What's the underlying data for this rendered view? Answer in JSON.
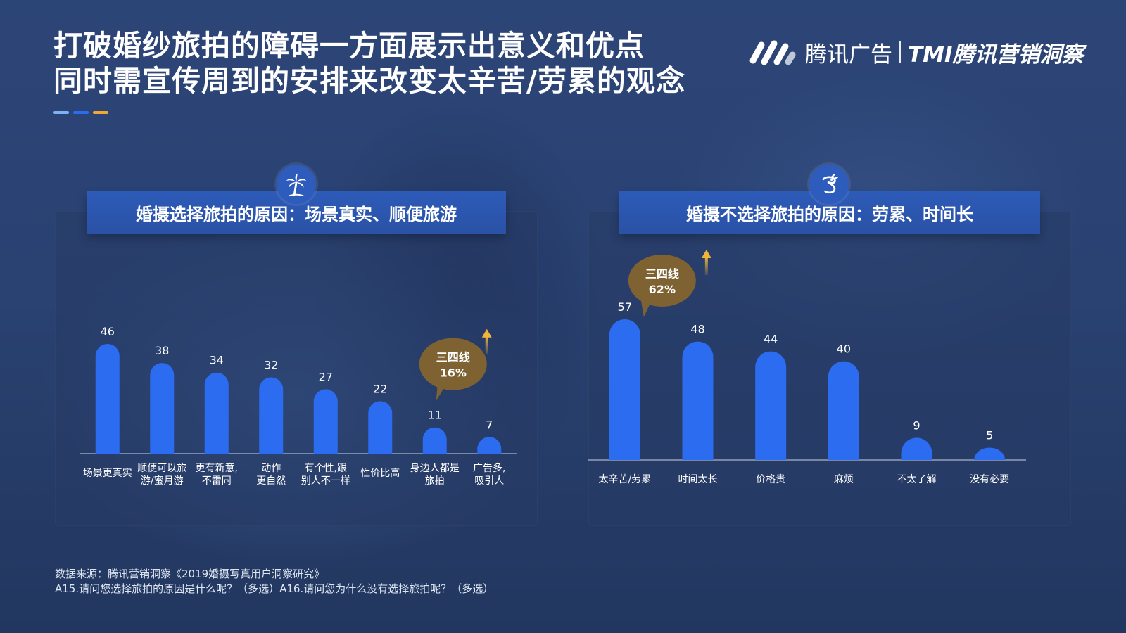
{
  "title": {
    "line1": "打破婚纱旅拍的障碍一方面展示出意义和优点",
    "line2": "同时需宣传周到的安排来改变太辛苦/劳累的观念"
  },
  "logo": {
    "brand": "腾讯广告",
    "sub": "TMI腾讯营销洞察"
  },
  "colors": {
    "bar": "#2b6cf0",
    "bubble": "#7f6232",
    "arrow": "#f0b43a",
    "accent1": "#7bb2f0",
    "accent2": "#2b6cf0",
    "accent3": "#f0a830"
  },
  "panels": {
    "left": {
      "title": "婚摄选择旅拍的原因：场景真实、顺便旅游",
      "icon": "palm-tree-icon"
    },
    "right": {
      "title": "婚摄不选择旅拍的原因：劳累、时间长",
      "icon": "dragon-icon"
    }
  },
  "chart_data": [
    {
      "type": "bar",
      "title": "婚摄选择旅拍的原因：场景真实、顺便旅游",
      "categories": [
        "场景更真实",
        "顺便可以旅\n游/蜜月游",
        "更有新意,\n不雷同",
        "动作\n更自然",
        "有个性,跟\n别人不一样",
        "性价比高",
        "身边人都是\n旅拍",
        "广告多,\n吸引人"
      ],
      "values": [
        46,
        38,
        34,
        32,
        27,
        22,
        11,
        7
      ],
      "ylim": [
        0,
        46
      ],
      "annotation": {
        "category_index": 6,
        "text_line1": "三四线",
        "text_line2": "16%"
      }
    },
    {
      "type": "bar",
      "title": "婚摄不选择旅拍的原因：劳累、时间长",
      "categories": [
        "太辛苦/劳累",
        "时间太长",
        "价格贵",
        "麻烦",
        "不太了解",
        "没有必要"
      ],
      "values": [
        57,
        48,
        44,
        40,
        9,
        5
      ],
      "ylim": [
        0,
        57
      ],
      "annotation": {
        "category_index": 0,
        "text_line1": "三四线",
        "text_line2": "62%"
      }
    }
  ],
  "footer": {
    "source": "数据来源：腾讯营销洞察《2019婚摄写真用户洞察研究》",
    "questions": "A15.请问您选择旅拍的原因是什么呢？（多选）A16.请问您为什么没有选择旅拍呢？（多选）"
  }
}
